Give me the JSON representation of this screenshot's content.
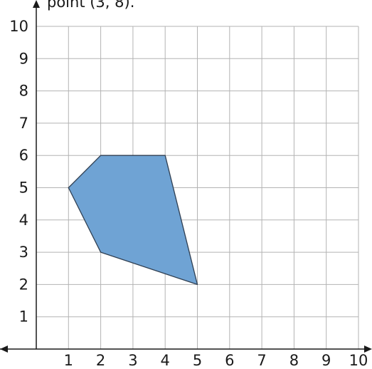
{
  "caption": "point (3, 8).",
  "chart_data": {
    "type": "polygon-on-grid",
    "grid": true,
    "xlim": [
      0,
      10
    ],
    "ylim": [
      0,
      10
    ],
    "x_ticks": [
      "1",
      "2",
      "3",
      "4",
      "5",
      "6",
      "7",
      "8",
      "9",
      "10"
    ],
    "y_ticks": [
      "1",
      "2",
      "3",
      "4",
      "5",
      "6",
      "7",
      "8",
      "9",
      "10"
    ],
    "polygon": {
      "vertices": [
        [
          2,
          6
        ],
        [
          4,
          6
        ],
        [
          5,
          2
        ],
        [
          2,
          3
        ],
        [
          1,
          5
        ]
      ],
      "fill": "#6fa3d4",
      "stroke": "#2f3f52"
    }
  }
}
